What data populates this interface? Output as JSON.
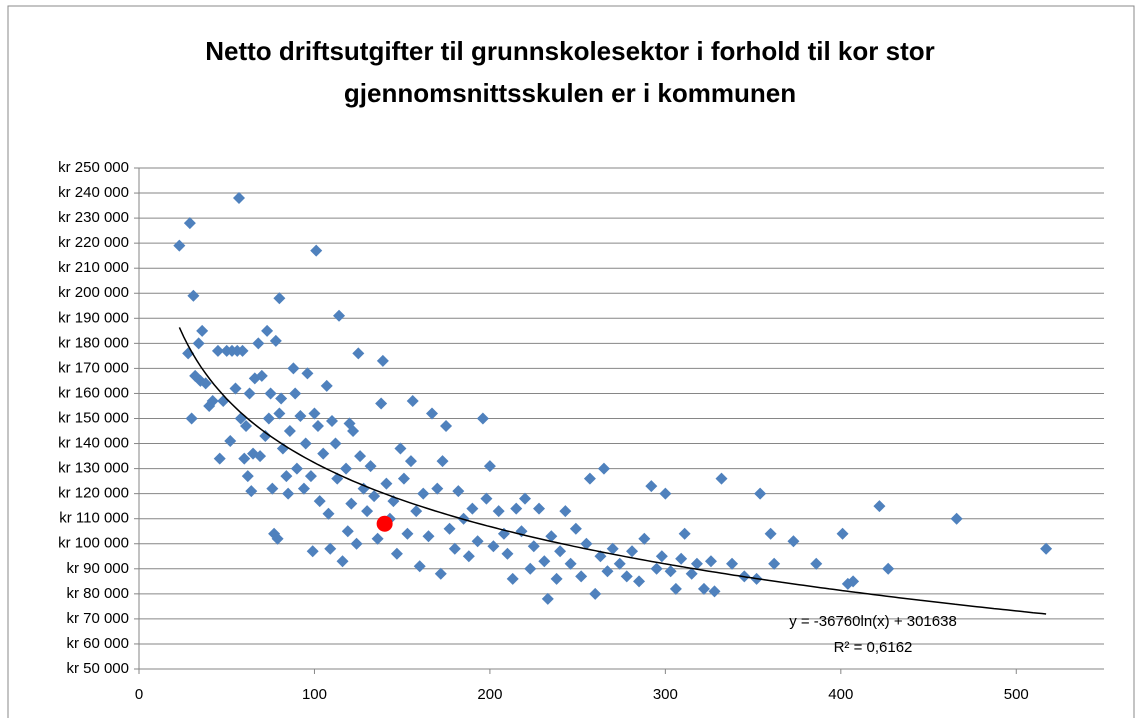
{
  "chart_data": {
    "type": "scatter",
    "title": "Netto driftsutgifter til grunnskolesektor i forhold til kor stor gjennomsnittsskulen er i kommunen",
    "xlim": [
      0,
      550
    ],
    "xticks": [
      0,
      100,
      200,
      300,
      400,
      500
    ],
    "ylim": [
      50000,
      250000
    ],
    "yticks": [
      {
        "value": 50000,
        "label": "kr 50 000"
      },
      {
        "value": 60000,
        "label": "kr 60 000"
      },
      {
        "value": 70000,
        "label": "kr 70 000"
      },
      {
        "value": 80000,
        "label": "kr 80 000"
      },
      {
        "value": 90000,
        "label": "kr 90 000"
      },
      {
        "value": 100000,
        "label": "kr 100 000"
      },
      {
        "value": 110000,
        "label": "kr 110 000"
      },
      {
        "value": 120000,
        "label": "kr 120 000"
      },
      {
        "value": 130000,
        "label": "kr 130 000"
      },
      {
        "value": 140000,
        "label": "kr 140 000"
      },
      {
        "value": 150000,
        "label": "kr 150 000"
      },
      {
        "value": 160000,
        "label": "kr 160 000"
      },
      {
        "value": 170000,
        "label": "kr 170 000"
      },
      {
        "value": 180000,
        "label": "kr 180 000"
      },
      {
        "value": 190000,
        "label": "kr 190 000"
      },
      {
        "value": 200000,
        "label": "kr 200 000"
      },
      {
        "value": 210000,
        "label": "kr 210 000"
      },
      {
        "value": 220000,
        "label": "kr 220 000"
      },
      {
        "value": 230000,
        "label": "kr 230 000"
      },
      {
        "value": 240000,
        "label": "kr 240 000"
      },
      {
        "value": 250000,
        "label": "kr 250 000"
      }
    ],
    "grid": true,
    "series": [
      {
        "color": "#4f81bd",
        "marker": "diamond",
        "x": [
          23,
          29,
          31,
          28,
          30,
          32,
          34,
          36,
          35,
          38,
          40,
          42,
          45,
          46,
          48,
          50,
          52,
          53,
          55,
          56,
          57,
          58,
          59,
          60,
          61,
          62,
          63,
          64,
          65,
          66,
          68,
          69,
          70,
          72,
          73,
          74,
          75,
          76,
          77,
          78,
          79,
          80,
          80,
          81,
          82,
          84,
          85,
          86,
          88,
          89,
          90,
          92,
          94,
          95,
          96,
          98,
          99,
          100,
          101,
          102,
          103,
          105,
          107,
          108,
          109,
          110,
          112,
          113,
          114,
          116,
          118,
          119,
          120,
          121,
          122,
          124,
          125,
          126,
          128,
          130,
          132,
          134,
          136,
          138,
          139,
          141,
          143,
          145,
          147,
          149,
          151,
          153,
          155,
          156,
          158,
          160,
          162,
          165,
          167,
          170,
          172,
          173,
          175,
          177,
          180,
          182,
          185,
          188,
          190,
          193,
          196,
          198,
          200,
          202,
          205,
          208,
          210,
          213,
          215,
          218,
          220,
          223,
          225,
          228,
          231,
          233,
          235,
          238,
          240,
          243,
          246,
          249,
          252,
          255,
          257,
          260,
          263,
          265,
          267,
          270,
          274,
          278,
          281,
          285,
          288,
          292,
          295,
          298,
          300,
          303,
          306,
          309,
          311,
          315,
          318,
          322,
          326,
          328,
          332,
          338,
          345,
          352,
          354,
          360,
          362,
          373,
          386,
          401,
          404,
          407,
          422,
          427,
          466,
          517
        ],
        "values": [
          219000,
          228000,
          199000,
          176000,
          150000,
          167000,
          180000,
          185000,
          165000,
          164000,
          155000,
          157000,
          177000,
          134000,
          157000,
          177000,
          141000,
          177000,
          162000,
          177000,
          238000,
          150000,
          177000,
          134000,
          147000,
          127000,
          160000,
          121000,
          136000,
          166000,
          180000,
          135000,
          167000,
          143000,
          185000,
          150000,
          160000,
          122000,
          104000,
          181000,
          102000,
          198000,
          152000,
          158000,
          138000,
          127000,
          120000,
          145000,
          170000,
          160000,
          130000,
          151000,
          122000,
          140000,
          168000,
          127000,
          97000,
          152000,
          217000,
          147000,
          117000,
          136000,
          163000,
          112000,
          98000,
          149000,
          140000,
          126000,
          191000,
          93000,
          130000,
          105000,
          148000,
          116000,
          145000,
          100000,
          176000,
          135000,
          122000,
          113000,
          131000,
          119000,
          102000,
          156000,
          173000,
          124000,
          110000,
          117000,
          96000,
          138000,
          126000,
          104000,
          133000,
          157000,
          113000,
          91000,
          120000,
          103000,
          152000,
          122000,
          88000,
          133000,
          147000,
          106000,
          98000,
          121000,
          110000,
          95000,
          114000,
          101000,
          150000,
          118000,
          131000,
          99000,
          113000,
          104000,
          96000,
          86000,
          114000,
          105000,
          118000,
          90000,
          99000,
          114000,
          93000,
          78000,
          103000,
          86000,
          97000,
          113000,
          92000,
          106000,
          87000,
          100000,
          126000,
          80000,
          95000,
          130000,
          89000,
          98000,
          92000,
          87000,
          97000,
          85000,
          102000,
          123000,
          90000,
          95000,
          120000,
          89000,
          82000,
          94000,
          104000,
          88000,
          92000,
          82000,
          93000,
          81000,
          126000,
          92000,
          87000,
          86000,
          120000,
          104000,
          92000,
          101000,
          92000,
          104000,
          84000,
          85000,
          115000,
          90000,
          110000,
          98000
        ]
      },
      {
        "color": "#ff0000",
        "marker": "circle",
        "x": [
          140
        ],
        "values": [
          108000
        ]
      }
    ],
    "trendline": {
      "a": -36760,
      "b": 301638,
      "xlim": [
        23,
        517
      ],
      "color": "#000000",
      "equation": "y = -36760ln(x) + 301638",
      "r2_label": "R² = 0,6162",
      "r2": 0.6162
    }
  }
}
